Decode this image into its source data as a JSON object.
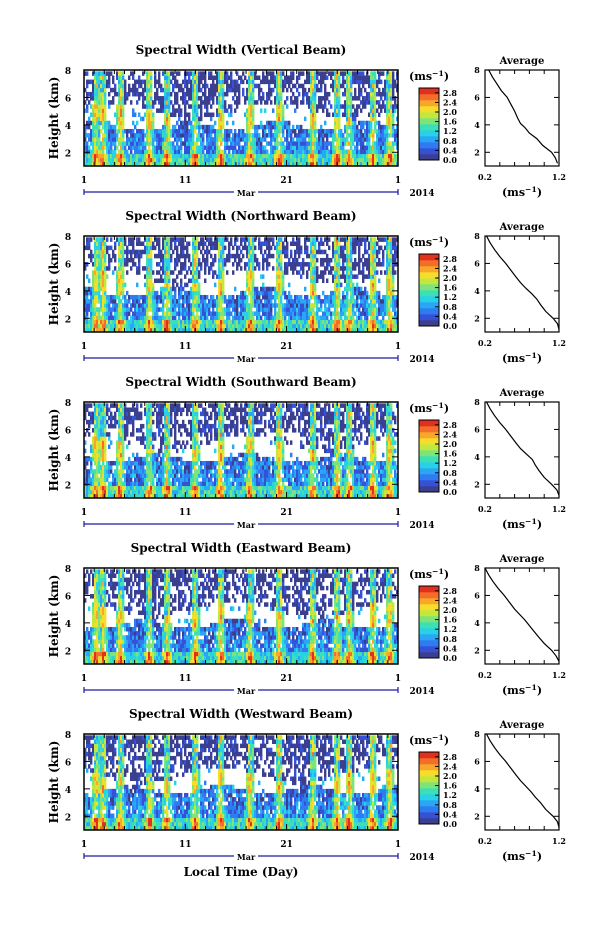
{
  "figure": {
    "xlabel": "Local Time (Day)",
    "month_label": "Mar",
    "year_label": "2014",
    "x_ticks": [
      "1",
      "11",
      "21",
      "1"
    ],
    "colorbar_unit": "(ms",
    "unit_exp": "−1",
    "unit_close": ")",
    "avg_title": "Average",
    "avg_xticks": [
      "0.2",
      "1.2"
    ],
    "avg_xlabel": "(ms",
    "ylabel": "Height (km)",
    "y_ticks": [
      "2",
      "4",
      "6",
      "8"
    ]
  },
  "colors": {
    "colormap": [
      "#3b3f8f",
      "#3552d6",
      "#2f7bf0",
      "#2aa7f4",
      "#28d1e6",
      "#3de0b4",
      "#7ee47a",
      "#c5e73d",
      "#f6dd2c",
      "#f8a72a",
      "#f46d2a",
      "#e0301e"
    ],
    "frame": "#000000",
    "timeline": "#1a1aa0"
  },
  "chart_data": [
    {
      "type": "heatmap",
      "title": "Spectral Width (Vertical Beam)",
      "xlabel": "",
      "ylabel": "Height (km)",
      "x_range_day": [
        1,
        32
      ],
      "ylim_km": [
        1,
        8
      ],
      "colorbar_ticks": [
        "0.0",
        "0.4",
        "0.8",
        "1.2",
        "1.6",
        "2.0",
        "2.4",
        "2.8"
      ],
      "colorbar_range": [
        0.0,
        3.0
      ],
      "average_profile": {
        "title": "Average",
        "xlim": [
          0.2,
          1.2
        ],
        "ylim": [
          1,
          8
        ],
        "x": [
          1.18,
          1.15,
          1.1,
          0.98,
          0.9,
          0.8,
          0.74,
          0.68,
          0.64,
          0.6,
          0.55,
          0.5,
          0.42,
          0.36,
          0.3,
          0.25
        ],
        "y": [
          1.2,
          1.6,
          2.0,
          2.5,
          3.0,
          3.4,
          3.8,
          4.1,
          4.5,
          5.0,
          5.5,
          6.0,
          6.5,
          7.0,
          7.5,
          8.0
        ]
      }
    },
    {
      "type": "heatmap",
      "title": "Spectral Width (Northward Beam)",
      "xlabel": "",
      "ylabel": "Height (km)",
      "x_range_day": [
        1,
        32
      ],
      "ylim_km": [
        1,
        8
      ],
      "colorbar_ticks": [
        "0.0",
        "0.4",
        "0.8",
        "1.2",
        "1.6",
        "2.0",
        "2.4",
        "2.8"
      ],
      "colorbar_range": [
        0.0,
        3.0
      ],
      "average_profile": {
        "title": "Average",
        "xlim": [
          0.2,
          1.2
        ],
        "ylim": [
          1,
          8
        ],
        "x": [
          1.2,
          1.18,
          1.12,
          1.02,
          0.95,
          0.9,
          0.83,
          0.75,
          0.68,
          0.62,
          0.55,
          0.48,
          0.4,
          0.33,
          0.27,
          0.22
        ],
        "y": [
          1.2,
          1.6,
          2.0,
          2.5,
          3.0,
          3.4,
          3.8,
          4.2,
          4.6,
          5.0,
          5.5,
          6.0,
          6.5,
          7.0,
          7.5,
          8.0
        ]
      }
    },
    {
      "type": "heatmap",
      "title": "Spectral Width (Southward Beam)",
      "xlabel": "",
      "ylabel": "Height (km)",
      "x_range_day": [
        1,
        32
      ],
      "ylim_km": [
        1,
        8
      ],
      "colorbar_ticks": [
        "0.0",
        "0.4",
        "0.8",
        "1.2",
        "1.6",
        "2.0",
        "2.4",
        "2.8"
      ],
      "colorbar_range": [
        0.0,
        3.0
      ],
      "average_profile": {
        "title": "Average",
        "xlim": [
          0.2,
          1.2
        ],
        "ylim": [
          1,
          8
        ],
        "x": [
          1.2,
          1.17,
          1.1,
          1.0,
          0.93,
          0.88,
          0.84,
          0.76,
          0.68,
          0.62,
          0.55,
          0.48,
          0.4,
          0.33,
          0.27,
          0.22
        ],
        "y": [
          1.2,
          1.6,
          2.0,
          2.5,
          3.0,
          3.4,
          3.8,
          4.2,
          4.6,
          5.0,
          5.5,
          6.0,
          6.5,
          7.0,
          7.5,
          8.0
        ]
      }
    },
    {
      "type": "heatmap",
      "title": "Spectral Width (Eastward Beam)",
      "xlabel": "",
      "ylabel": "Height (km)",
      "x_range_day": [
        1,
        32
      ],
      "ylim_km": [
        1,
        8
      ],
      "colorbar_ticks": [
        "0.0",
        "0.4",
        "0.8",
        "1.2",
        "1.6",
        "2.0",
        "2.4",
        "2.8"
      ],
      "colorbar_range": [
        0.0,
        3.0
      ],
      "average_profile": {
        "title": "Average",
        "xlim": [
          0.2,
          1.2
        ],
        "ylim": [
          1,
          8
        ],
        "x": [
          1.2,
          1.16,
          1.1,
          1.0,
          0.92,
          0.86,
          0.8,
          0.74,
          0.67,
          0.6,
          0.53,
          0.46,
          0.38,
          0.31,
          0.25,
          0.2
        ],
        "y": [
          1.2,
          1.6,
          2.0,
          2.5,
          3.0,
          3.4,
          3.8,
          4.2,
          4.6,
          5.0,
          5.5,
          6.0,
          6.5,
          7.0,
          7.5,
          8.0
        ]
      }
    },
    {
      "type": "heatmap",
      "title": "Spectral Width (Westward Beam)",
      "xlabel": "Local Time (Day)",
      "ylabel": "Height (km)",
      "x_range_day": [
        1,
        32
      ],
      "ylim_km": [
        1,
        8
      ],
      "colorbar_ticks": [
        "0.0",
        "0.4",
        "0.8",
        "1.2",
        "1.6",
        "2.0",
        "2.4",
        "2.8"
      ],
      "colorbar_range": [
        0.0,
        3.0
      ],
      "average_profile": {
        "title": "Average",
        "xlim": [
          0.2,
          1.2
        ],
        "ylim": [
          1,
          8
        ],
        "x": [
          1.2,
          1.18,
          1.12,
          1.02,
          0.95,
          0.88,
          0.82,
          0.75,
          0.68,
          0.62,
          0.55,
          0.48,
          0.4,
          0.33,
          0.27,
          0.22
        ],
        "y": [
          1.2,
          1.6,
          2.0,
          2.5,
          3.0,
          3.4,
          3.8,
          4.2,
          4.6,
          5.0,
          5.5,
          6.0,
          6.5,
          7.0,
          7.5,
          8.0
        ]
      }
    }
  ]
}
